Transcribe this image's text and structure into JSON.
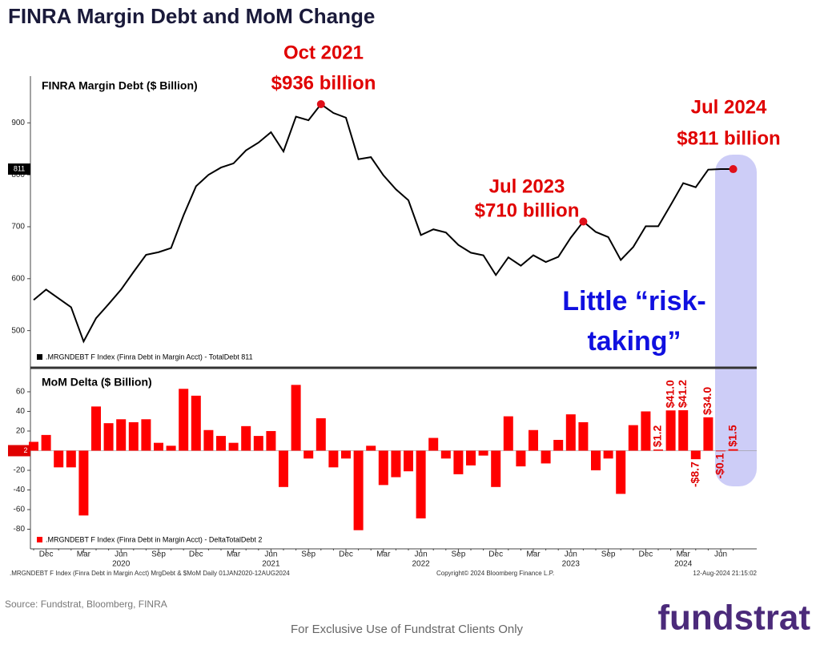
{
  "page_title": "FINRA Margin Debt and MoM Change",
  "chart_data": [
    {
      "type": "line",
      "title": "FINRA Margin Debt ($ Billion)",
      "color": "#000000",
      "marker_color": "#e0101a",
      "values": [
        559,
        579,
        562,
        545,
        479,
        524,
        551,
        579,
        613,
        646,
        651,
        659,
        722,
        778,
        800,
        814,
        822,
        847,
        862,
        882,
        845,
        912,
        905,
        936,
        919,
        910,
        830,
        834,
        799,
        772,
        751,
        684,
        695,
        689,
        665,
        650,
        645,
        607,
        641,
        625,
        645,
        632,
        642,
        679,
        710,
        690,
        680,
        636,
        661,
        701,
        701,
        742,
        784,
        776,
        810,
        811,
        811
      ],
      "ylim": [
        430,
        990
      ],
      "yticks": [
        500,
        600,
        700,
        800,
        900
      ],
      "last_label": "811",
      "legend": ".MRGNDEBT F Index (Finra Debt in Margin Acct) - TotalDebt 811",
      "annotations": [
        [
          "Oct 2021",
          "$936 billion"
        ],
        [
          "Jul 2023",
          "$710 billion"
        ],
        [
          "Jul 2024",
          "$811 billion"
        ]
      ]
    },
    {
      "type": "bar",
      "title": "MoM Delta ($ Billion)",
      "color": "#ff0000",
      "categories": [
        null,
        "Dec",
        null,
        null,
        "Mar",
        null,
        null,
        "Jun",
        null,
        null,
        "Sep",
        null,
        null,
        "Dec",
        null,
        null,
        "Mar",
        null,
        null,
        "Jun",
        null,
        null,
        "Sep",
        null,
        null,
        "Dec",
        null,
        null,
        "Mar",
        null,
        null,
        "Jun",
        null,
        null,
        "Sep",
        null,
        null,
        "Dec",
        null,
        null,
        "Mar",
        null,
        null,
        "Jun",
        null,
        null,
        "Sep",
        null,
        null,
        "Dec",
        null,
        null,
        "Mar",
        null,
        null,
        "Jun",
        null
      ],
      "year_labels": [
        "2020",
        "2021",
        "2022",
        "2023",
        "2024"
      ],
      "values": [
        9,
        16,
        -17,
        -17,
        -66,
        45,
        28,
        32,
        29,
        32,
        8,
        5,
        63,
        56,
        21,
        15,
        8,
        25,
        15,
        20,
        -37,
        67,
        -8,
        33,
        -17,
        -8,
        -81,
        5,
        -35,
        -27,
        -21,
        -69,
        13,
        -8,
        -24,
        -15,
        -5,
        -37,
        35,
        -16,
        21,
        -13,
        11,
        37,
        29,
        -20,
        -8,
        -44,
        26,
        40,
        1.2,
        41.0,
        41.2,
        -8.7,
        34.0,
        -0.1,
        1.5
      ],
      "value_labels": [
        null,
        null,
        null,
        null,
        null,
        null,
        null,
        null,
        null,
        null,
        null,
        null,
        null,
        null,
        null,
        null,
        null,
        null,
        null,
        null,
        null,
        null,
        null,
        null,
        null,
        null,
        null,
        null,
        null,
        null,
        null,
        null,
        null,
        null,
        null,
        null,
        null,
        null,
        null,
        null,
        null,
        null,
        null,
        null,
        null,
        null,
        null,
        null,
        null,
        null,
        "$1.2",
        "$41.0",
        "$41.2",
        "-$8.7",
        "$34.0",
        "-$0.1",
        "$1.5"
      ],
      "ylim": [
        -100,
        82
      ],
      "yticks": [
        -80,
        -60,
        -40,
        -20,
        20,
        40,
        60
      ],
      "last_label": "2",
      "legend": ".MRGNDEBT F Index (Finra Debt in Margin Acct) - DeltaTotalDebt 2"
    }
  ],
  "callout": [
    "Little “risk-",
    "taking”"
  ],
  "bloomberg_footer": [
    ".MRGNDEBT F Index (Finra Debt in Margin Acct) MrgDebt & $MoM  Daily 01JAN2020-12AUG2024",
    "Copyright© 2024 Bloomberg Finance L.P.",
    "12-Aug-2024 21:15:02"
  ],
  "source": "Source: Fundstrat, Bloomberg, FINRA",
  "disclaimer": "For Exclusive Use of Fundstrat Clients Only",
  "logo": "fundstrat"
}
